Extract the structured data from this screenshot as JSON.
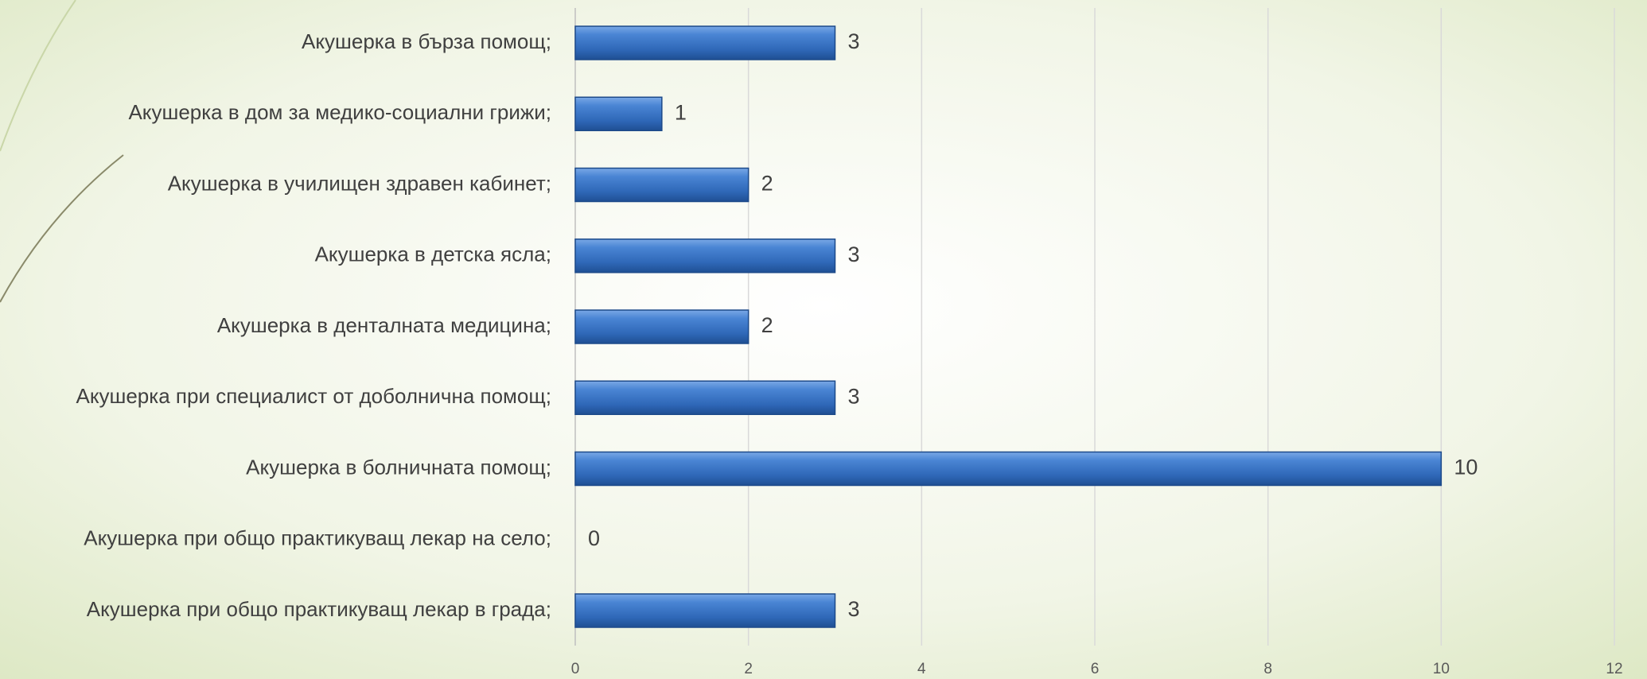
{
  "chart_data": {
    "type": "bar",
    "orientation": "horizontal",
    "categories": [
      "Акушерка в бърза помощ;",
      "Акушерка в дом за медико-социални грижи;",
      "Акушерка в училищен здравен кабинет;",
      "Акушерка в детска ясла;",
      "Акушерка в денталната медицина;",
      "Акушерка при специалист от доболнична помощ;",
      "Акушерка в болничната помощ;",
      "Акушерка при общо практикуващ лекар на село;",
      "Акушерка при общо практикуващ лекар в града;"
    ],
    "values": [
      3,
      1,
      2,
      3,
      2,
      3,
      10,
      0,
      3
    ],
    "color": "#3a74c4",
    "xlim": [
      0,
      12
    ],
    "xticks": [
      0,
      2,
      4,
      6,
      8,
      10,
      12
    ],
    "grid": true
  }
}
